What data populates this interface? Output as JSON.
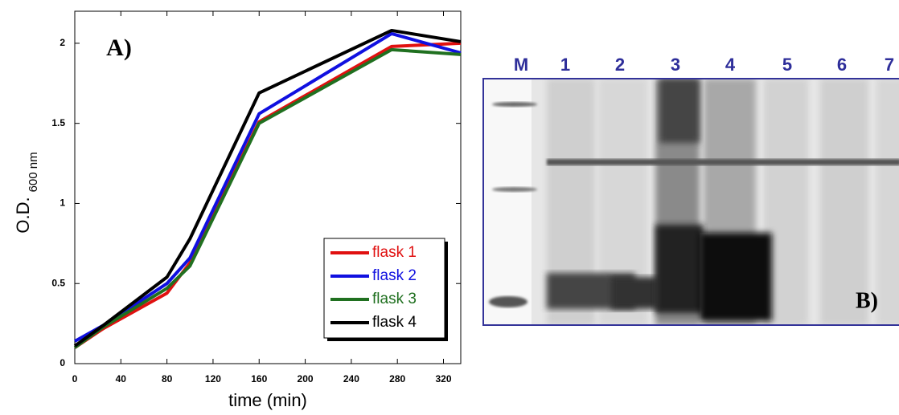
{
  "chart_data": {
    "type": "line",
    "panel_label": "A)",
    "xlabel": "time (min)",
    "ylabel": "O.D.",
    "ylabel_sub": "600 nm",
    "x": [
      0,
      25,
      80,
      100,
      160,
      275,
      335
    ],
    "series": [
      {
        "name": "flask 1",
        "color": "#e01010",
        "values": [
          0.1,
          0.22,
          0.44,
          0.63,
          1.51,
          1.98,
          2.0
        ]
      },
      {
        "name": "flask 2",
        "color": "#1010e0",
        "values": [
          0.14,
          0.24,
          0.5,
          0.66,
          1.56,
          2.06,
          1.94
        ]
      },
      {
        "name": "flask 3",
        "color": "#207020",
        "values": [
          0.1,
          0.23,
          0.47,
          0.61,
          1.5,
          1.96,
          1.93
        ]
      },
      {
        "name": "flask 4",
        "color": "#000000",
        "values": [
          0.11,
          0.24,
          0.54,
          0.78,
          1.69,
          2.08,
          2.01
        ]
      }
    ],
    "xlim": [
      0,
      335
    ],
    "xticks": [
      0,
      40,
      80,
      120,
      160,
      200,
      240,
      280,
      320
    ],
    "ylim": [
      0,
      2.2
    ],
    "yticks": [
      0,
      0.5,
      1,
      1.5,
      2
    ],
    "legend": "lower right"
  },
  "gel": {
    "panel_label": "B)",
    "lanes": [
      "M",
      "1",
      "2",
      "3",
      "4",
      "5",
      "6",
      "7"
    ]
  }
}
